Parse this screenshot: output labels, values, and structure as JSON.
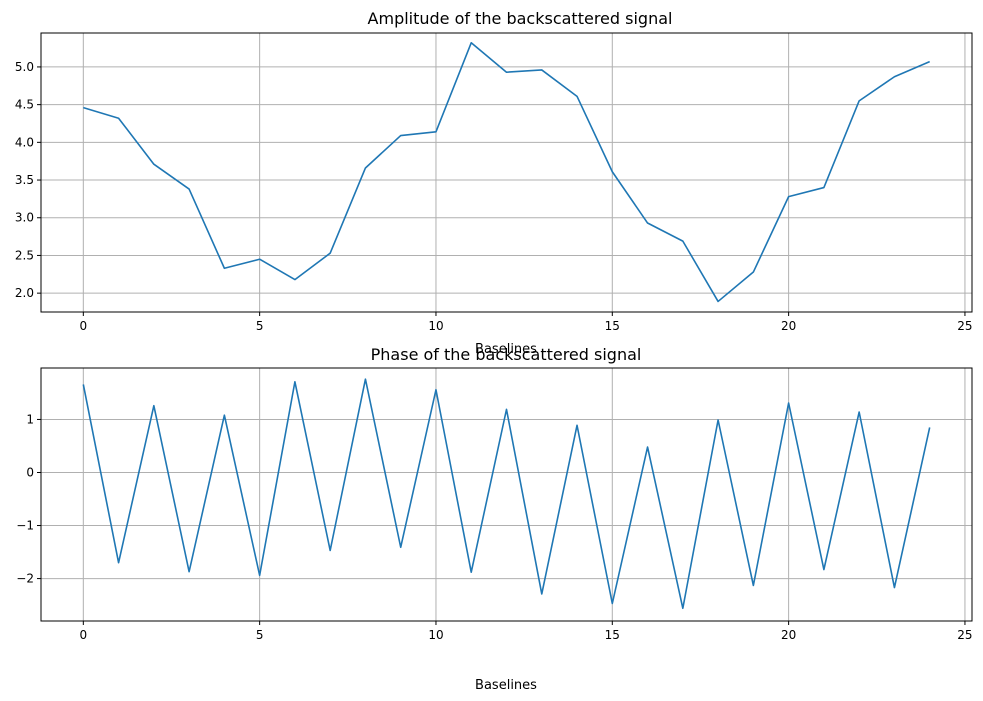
{
  "chart_data": [
    {
      "type": "line",
      "title": "Amplitude of the backscattered signal",
      "xlabel": "Baselines",
      "ylabel": "",
      "xlim": [
        -1.2,
        25.2
      ],
      "ylim": [
        1.75,
        5.45
      ],
      "xticks": [
        0,
        5,
        10,
        15,
        20,
        25
      ],
      "xtick_labels": [
        "0",
        "5",
        "10",
        "15",
        "20",
        "25"
      ],
      "yticks": [
        2.0,
        2.5,
        3.0,
        3.5,
        4.0,
        4.5,
        5.0
      ],
      "ytick_labels": [
        "2.0",
        "2.5",
        "3.0",
        "3.5",
        "4.0",
        "4.5",
        "5.0"
      ],
      "grid": true,
      "color": "#1f77b4",
      "x": [
        0,
        1,
        2,
        3,
        4,
        5,
        6,
        7,
        8,
        9,
        10,
        11,
        12,
        13,
        14,
        15,
        16,
        17,
        18,
        19,
        20,
        21,
        22,
        23,
        24
      ],
      "y": [
        4.46,
        4.32,
        3.71,
        3.38,
        2.33,
        2.45,
        2.18,
        2.53,
        3.66,
        4.09,
        4.14,
        5.32,
        4.93,
        4.96,
        4.61,
        3.61,
        2.93,
        2.69,
        1.89,
        2.28,
        3.28,
        3.4,
        4.55,
        4.87,
        5.07
      ]
    },
    {
      "type": "line",
      "title": "Phase of the backscattered signal",
      "xlabel": "Baselines",
      "ylabel": "",
      "xlim": [
        -1.2,
        25.2
      ],
      "ylim": [
        -2.8,
        1.97
      ],
      "xticks": [
        0,
        5,
        10,
        15,
        20,
        25
      ],
      "xtick_labels": [
        "0",
        "5",
        "10",
        "15",
        "20",
        "25"
      ],
      "yticks": [
        -2,
        -1,
        0,
        1
      ],
      "ytick_labels": [
        "−2",
        "−1",
        "0",
        "1"
      ],
      "grid": true,
      "color": "#1f77b4",
      "x": [
        0,
        1,
        2,
        3,
        4,
        5,
        6,
        7,
        8,
        9,
        10,
        11,
        12,
        13,
        14,
        15,
        16,
        17,
        18,
        19,
        20,
        21,
        22,
        23,
        24
      ],
      "y": [
        1.66,
        -1.7,
        1.26,
        -1.87,
        1.08,
        -1.94,
        1.71,
        -1.47,
        1.76,
        -1.41,
        1.56,
        -1.88,
        1.19,
        -2.29,
        0.89,
        -2.47,
        0.48,
        -2.56,
        0.99,
        -2.13,
        1.31,
        -1.83,
        1.14,
        -2.17,
        0.85
      ]
    }
  ]
}
